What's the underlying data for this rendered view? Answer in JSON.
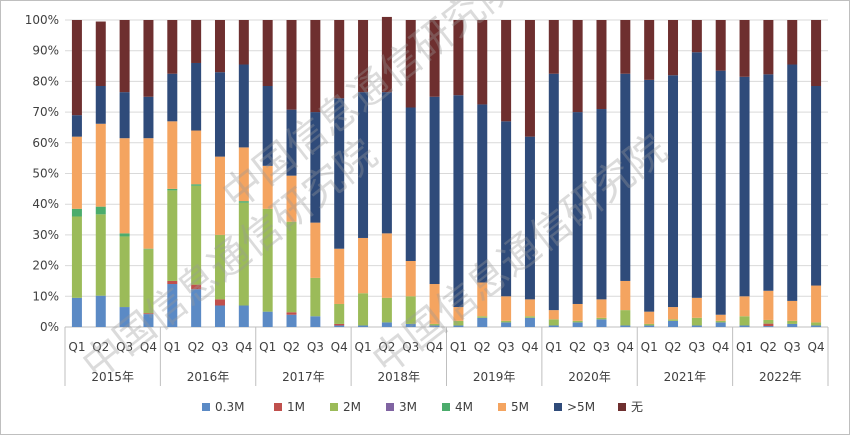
{
  "chart_data": {
    "type": "bar",
    "stacked": true,
    "percent": true,
    "title": "",
    "xlabel": "",
    "ylabel": "",
    "ylim": [
      0,
      100
    ],
    "y_ticks": [
      "0%",
      "10%",
      "20%",
      "30%",
      "40%",
      "50%",
      "60%",
      "70%",
      "80%",
      "90%",
      "100%"
    ],
    "categories": [
      "Q1",
      "Q2",
      "Q3",
      "Q4",
      "Q1",
      "Q2",
      "Q3",
      "Q4",
      "Q1",
      "Q2",
      "Q3",
      "Q4",
      "Q1",
      "Q2",
      "Q3",
      "Q4",
      "Q1",
      "Q2",
      "Q3",
      "Q4",
      "Q1",
      "Q2",
      "Q3",
      "Q4",
      "Q1",
      "Q2",
      "Q3",
      "Q4",
      "Q1",
      "Q2",
      "Q3",
      "Q4"
    ],
    "groups": [
      "2015年",
      "2016年",
      "2017年",
      "2018年",
      "2019年",
      "2020年",
      "2021年",
      "2022年"
    ],
    "legend_position": "bottom",
    "series": [
      {
        "name": "0.3M",
        "color": "#5b8ac5",
        "values": [
          9.5,
          10.2,
          6.5,
          4.2,
          14,
          12.3,
          7,
          7,
          5,
          4,
          3.5,
          0.5,
          0.5,
          1.5,
          1,
          0.5,
          0.5,
          3,
          1.5,
          3,
          0.5,
          1.5,
          2.5,
          0.5,
          0.5,
          2,
          0.5,
          1.5,
          0.5,
          0.3,
          1,
          0.5
        ]
      },
      {
        "name": "1M",
        "color": "#c0504d",
        "values": [
          0,
          0,
          0,
          0.3,
          1,
          1.5,
          2,
          0,
          0,
          0.8,
          0,
          0.5,
          0,
          0,
          0,
          0,
          0,
          0,
          0,
          0,
          0,
          0,
          0,
          0,
          0,
          0,
          0,
          0,
          0,
          0.8,
          0,
          0
        ]
      },
      {
        "name": "2M",
        "color": "#9bbb59",
        "values": [
          26.5,
          26.5,
          23,
          20.8,
          29.5,
          32.2,
          21,
          33.5,
          33.5,
          29.5,
          12.5,
          6.5,
          10.5,
          8,
          9,
          0.5,
          1.5,
          0.5,
          0.5,
          0.5,
          2,
          0.5,
          0.5,
          5,
          0.5,
          0.5,
          2.5,
          0.5,
          3,
          1.2,
          1,
          1
        ]
      },
      {
        "name": "3M",
        "color": "#8064a2",
        "values": [
          0,
          0,
          0,
          0,
          0,
          0,
          0,
          0,
          0,
          0,
          0,
          0,
          0,
          0,
          0,
          0,
          0,
          0,
          0,
          0,
          0,
          0,
          0,
          0,
          0,
          0,
          0,
          0,
          0,
          0,
          0,
          0
        ]
      },
      {
        "name": "4M",
        "color": "#4bac6c",
        "values": [
          2.5,
          2.5,
          1,
          0.2,
          0.5,
          0.5,
          0,
          0.5,
          0,
          0,
          0,
          0,
          0,
          0,
          0,
          0,
          0,
          0,
          0,
          0,
          0,
          0,
          0,
          0,
          0,
          0,
          0,
          0,
          0,
          0,
          0,
          0
        ]
      },
      {
        "name": "5M",
        "color": "#f4a460",
        "values": [
          23.5,
          27,
          31,
          36,
          22,
          17.5,
          25.5,
          17.5,
          14,
          15,
          18,
          18,
          18,
          21,
          11.5,
          13,
          4.5,
          11,
          8,
          5.5,
          3,
          5.5,
          6,
          9.5,
          4,
          4,
          6.5,
          2,
          6.5,
          9.5,
          6.5,
          12
        ]
      },
      {
        "name": ">5M",
        "color": "#2f4b7a",
        "values": [
          7,
          12.3,
          15,
          13.5,
          15.5,
          22,
          27.5,
          27,
          26,
          21.5,
          36,
          49,
          47.5,
          46,
          50,
          61,
          69,
          58,
          57,
          53,
          77,
          62.5,
          62,
          67.5,
          75.5,
          75.5,
          80,
          79.5,
          71.5,
          70.5,
          77,
          65
        ]
      },
      {
        "name": "无",
        "color": "#6e2f2f",
        "values": [
          31,
          21,
          23.5,
          25,
          17.5,
          14,
          17,
          14.5,
          21.5,
          29.2,
          30,
          25.5,
          23.5,
          24.5,
          28.5,
          25,
          24.5,
          27.5,
          33,
          38,
          17.5,
          30,
          29,
          17.5,
          19.5,
          18,
          10.5,
          16.5,
          18.5,
          17.7,
          14.5,
          21.5
        ]
      }
    ]
  },
  "watermarks": [
    "中国信息通信研究院",
    "中国信息通信研究院",
    "中国信息通信研究院"
  ]
}
